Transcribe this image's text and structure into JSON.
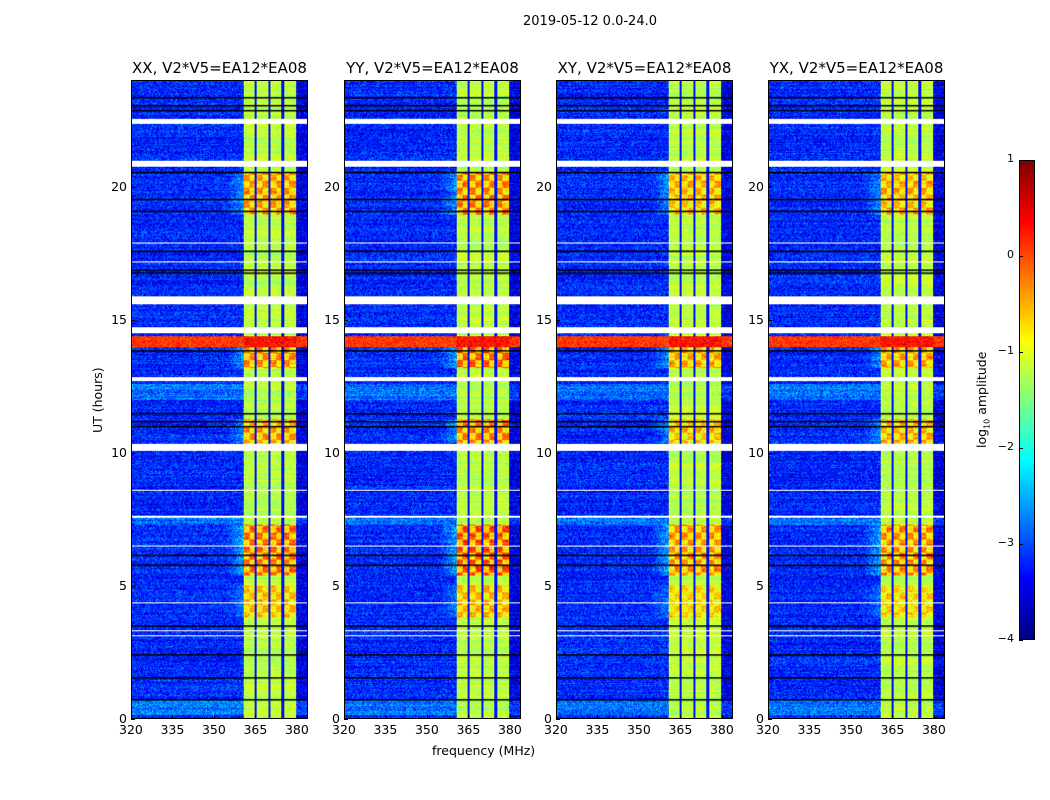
{
  "chart_data": {
    "type": "heatmap",
    "title": "2019-05-12 0.0-24.0",
    "xlabel": "frequency (MHz)",
    "ylabel": "UT (hours)",
    "xlim": [
      320,
      384
    ],
    "ylim": [
      0,
      24
    ],
    "xticks": [
      "320",
      "335",
      "350",
      "365",
      "380"
    ],
    "xtick_values": [
      320,
      335,
      350,
      365,
      380
    ],
    "yticks": [
      "0",
      "5",
      "10",
      "15",
      "20"
    ],
    "ytick_values": [
      0,
      5,
      10,
      15,
      20
    ],
    "panels": [
      {
        "title": "XX, V2*V5=EA12*EA08",
        "band_gain": 1.0
      },
      {
        "title": "YY, V2*V5=EA12*EA08",
        "band_gain": 1.15
      },
      {
        "title": "XY, V2*V5=EA12*EA08",
        "band_gain": 0.85
      },
      {
        "title": "YX, V2*V5=EA12*EA08",
        "band_gain": 0.9
      }
    ],
    "colorbar": {
      "label": "log10 amplitude",
      "label_main": "log",
      "label_sub": "10",
      "label_rest": " amplitude",
      "range": [
        -4,
        1
      ],
      "ticks": [
        "1",
        "0",
        "−1",
        "−2",
        "−3",
        "−4"
      ],
      "tick_values": [
        1,
        0,
        -1,
        -2,
        -3,
        -4
      ],
      "colormap": "jet"
    },
    "model": {
      "background_level": -3.2,
      "band_mhz": [
        360.5,
        380
      ],
      "band_level": -1.2,
      "band_notches_mhz": [
        365,
        370,
        375
      ],
      "active_hours": [
        [
          19.0,
          20.6,
          0.9
        ],
        [
          13.2,
          14.4,
          1.0
        ],
        [
          10.4,
          11.3,
          0.9
        ],
        [
          5.4,
          7.3,
          1.1
        ],
        [
          3.8,
          5.0,
          0.7
        ]
      ],
      "hot_rfi_hours": [
        [
          14.0,
          14.4
        ]
      ],
      "flagged_hours": [
        [
          22.4,
          22.6
        ],
        [
          20.8,
          21.0
        ],
        [
          15.6,
          15.9
        ],
        [
          14.5,
          14.75
        ],
        [
          12.7,
          12.85
        ],
        [
          10.1,
          10.35
        ],
        [
          17.88,
          17.93
        ],
        [
          17.18,
          17.23
        ],
        [
          8.58,
          8.63
        ],
        [
          7.58,
          7.63
        ],
        [
          6.48,
          6.53
        ],
        [
          4.33,
          4.38
        ],
        [
          3.28,
          3.33
        ],
        [
          3.08,
          3.13
        ]
      ],
      "black_lines_hours": [
        23.4,
        23.1,
        22.9,
        20.6,
        19.55,
        19.1,
        17.6,
        16.9,
        16.8,
        13.85,
        11.5,
        11.2,
        11.0,
        6.15,
        5.8,
        3.5,
        2.4,
        1.55,
        0.7
      ],
      "elevated_bg_hours": [
        [
          0.15,
          0.7
        ],
        [
          7.3,
          7.6
        ],
        [
          12.0,
          12.6
        ]
      ]
    }
  }
}
